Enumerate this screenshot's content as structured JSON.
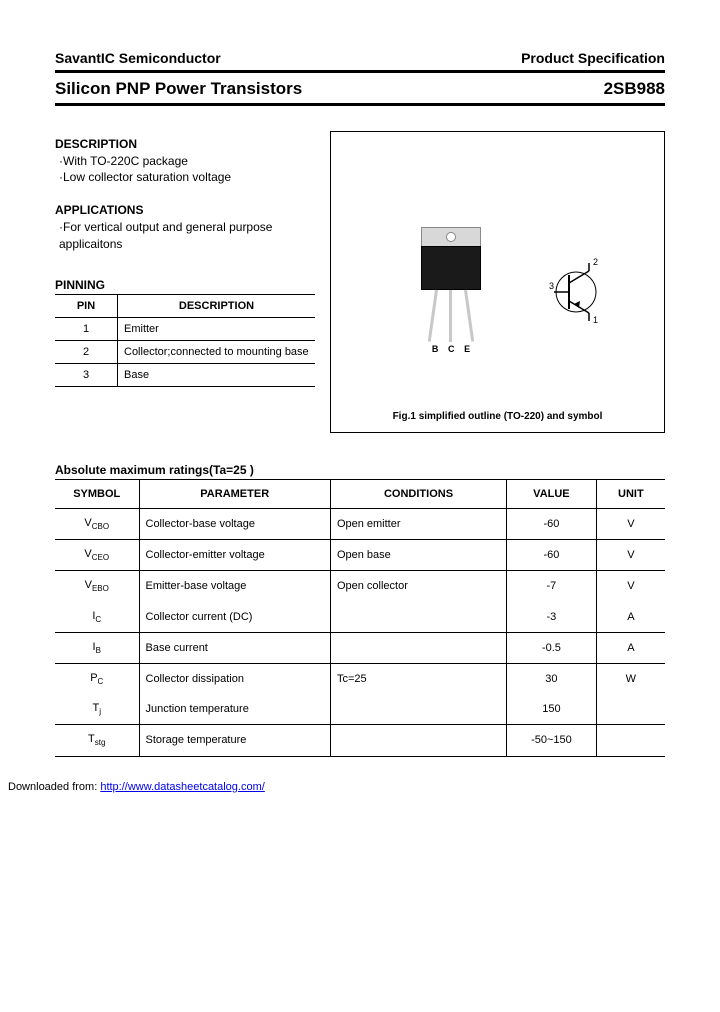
{
  "header": {
    "company": "SavantIC Semiconductor",
    "doc_type": "Product Specification",
    "product_line": "Silicon PNP Power Transistors",
    "part_number": "2SB988"
  },
  "description": {
    "heading": "DESCRIPTION",
    "items": [
      "·With TO-220C package",
      "·Low collector saturation voltage"
    ]
  },
  "applications": {
    "heading": "APPLICATIONS",
    "items": [
      "·For vertical output and general purpose applicaitons"
    ]
  },
  "pinning": {
    "heading": "PINNING",
    "columns": [
      "PIN",
      "DESCRIPTION"
    ],
    "rows": [
      {
        "pin": "1",
        "desc": "Emitter"
      },
      {
        "pin": "2",
        "desc": "Collector;connected to mounting base"
      },
      {
        "pin": "3",
        "desc": "Base"
      }
    ]
  },
  "figure": {
    "caption": "Fig.1 simplified outline (TO-220) and symbol",
    "lead_labels": [
      "B",
      "C",
      "E"
    ],
    "symbol_labels": {
      "collector": "2",
      "base": "3",
      "emitter": "1"
    }
  },
  "ratings": {
    "heading": "Absolute maximum ratings(Ta=25  )",
    "columns": [
      "SYMBOL",
      "PARAMETER",
      "CONDITIONS",
      "VALUE",
      "UNIT"
    ],
    "rows": [
      {
        "symbol_main": "V",
        "symbol_sub": "CBO",
        "parameter": "Collector-base voltage",
        "conditions": "Open emitter",
        "value": "-60",
        "unit": "V",
        "group_start": true
      },
      {
        "symbol_main": "V",
        "symbol_sub": "CEO",
        "parameter": "Collector-emitter voltage",
        "conditions": "Open base",
        "value": "-60",
        "unit": "V",
        "group_start": true
      },
      {
        "symbol_main": "V",
        "symbol_sub": "EBO",
        "parameter": "Emitter-base voltage",
        "conditions": "Open collector",
        "value": "-7",
        "unit": "V",
        "group_start": true
      },
      {
        "symbol_main": "I",
        "symbol_sub": "C",
        "parameter": "Collector current (DC)",
        "conditions": "",
        "value": "-3",
        "unit": "A",
        "group_start": false
      },
      {
        "symbol_main": "I",
        "symbol_sub": "B",
        "parameter": "Base current",
        "conditions": "",
        "value": "-0.5",
        "unit": "A",
        "group_start": true
      },
      {
        "symbol_main": "P",
        "symbol_sub": "C",
        "parameter": "Collector dissipation",
        "conditions": "Tc=25 ",
        "value": "30",
        "unit": "W",
        "group_start": true
      },
      {
        "symbol_main": "T",
        "symbol_sub": "j",
        "parameter": "Junction temperature",
        "conditions": "",
        "value": "150",
        "unit": "",
        "group_start": false
      },
      {
        "symbol_main": "T",
        "symbol_sub": "stg",
        "parameter": "Storage temperature",
        "conditions": "",
        "value": "-50~150",
        "unit": "",
        "group_start": true,
        "last": true
      }
    ]
  },
  "footer": {
    "text": "Downloaded from: ",
    "url": "http://www.datasheetcatalog.com/"
  },
  "colors": {
    "text": "#000000",
    "background": "#ffffff",
    "link": "#0000ee",
    "package_body": "#1a1a1a",
    "package_tab": "#d8d8d8",
    "lead": "#c8c8c8"
  }
}
